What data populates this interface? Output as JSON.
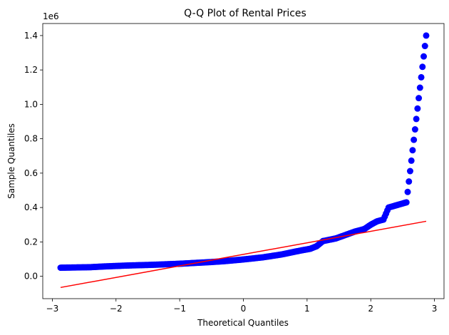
{
  "chart_data": {
    "type": "scatter",
    "title": "Q-Q Plot of Rental Prices",
    "xlabel": "Theoretical Quantiles",
    "ylabel": "Sample Quantiles",
    "y_offset_label": "1e6",
    "xlim": [
      -3.15,
      3.15
    ],
    "ylim": [
      -0.13,
      1.47
    ],
    "x_ticks": [
      -3,
      -2,
      -1,
      0,
      1,
      2,
      3
    ],
    "x_tick_labels": [
      "−3",
      "−2",
      "−1",
      "0",
      "1",
      "2",
      "3"
    ],
    "y_ticks": [
      0.0,
      0.2,
      0.4,
      0.6,
      0.8,
      1.0,
      1.2,
      1.4
    ],
    "y_tick_labels": [
      "0.0",
      "0.2",
      "0.4",
      "0.6",
      "0.8",
      "1.0",
      "1.2",
      "1.4"
    ],
    "grid": false,
    "colors": {
      "points": "#0000ff",
      "line": "#ff0000"
    },
    "reference_line": {
      "x": [
        -2.87,
        2.87
      ],
      "y": [
        -0.065,
        0.32
      ]
    },
    "anchors": [
      [
        -2.87,
        0.05
      ],
      [
        -2.55,
        0.052
      ],
      [
        -2.4,
        0.053
      ],
      [
        -2.3,
        0.055
      ],
      [
        -2.2,
        0.057
      ],
      [
        -2.0,
        0.06
      ],
      [
        -1.8,
        0.063
      ],
      [
        -1.5,
        0.066
      ],
      [
        -1.2,
        0.07
      ],
      [
        -1.0,
        0.073
      ],
      [
        -0.8,
        0.077
      ],
      [
        -0.5,
        0.083
      ],
      [
        -0.3,
        0.088
      ],
      [
        0.0,
        0.098
      ],
      [
        0.3,
        0.11
      ],
      [
        0.6,
        0.127
      ],
      [
        0.9,
        0.15
      ],
      [
        1.05,
        0.16
      ],
      [
        1.15,
        0.175
      ],
      [
        1.25,
        0.205
      ],
      [
        1.45,
        0.22
      ],
      [
        1.6,
        0.24
      ],
      [
        1.75,
        0.26
      ],
      [
        1.9,
        0.275
      ],
      [
        2.0,
        0.3
      ],
      [
        2.1,
        0.32
      ],
      [
        2.2,
        0.33
      ],
      [
        2.28,
        0.4
      ],
      [
        2.42,
        0.415
      ],
      [
        2.56,
        0.43
      ],
      [
        2.87,
        1.4
      ]
    ]
  }
}
